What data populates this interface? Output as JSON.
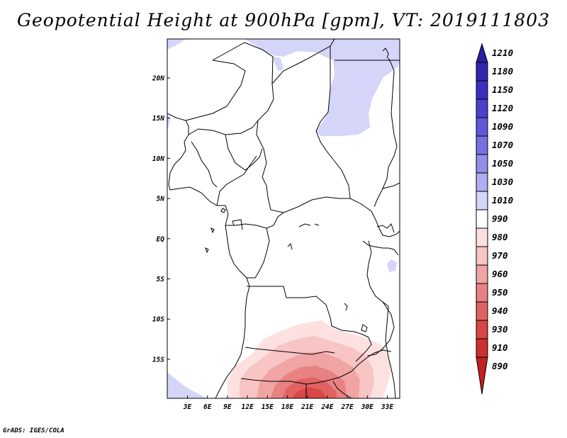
{
  "title": "Geopotential Height at 900hPa [gpm], VT: 2019111803",
  "credit": "GrADS: IGES/COLA",
  "map": {
    "variable": "Geopotential Height",
    "level": "900hPa",
    "units": "gpm",
    "valid_time": "2019111803",
    "lon_labels": [
      "3E",
      "6E",
      "9E",
      "12E",
      "15E",
      "18E",
      "21E",
      "24E",
      "27E",
      "30E",
      "33E"
    ],
    "lat_labels": [
      "20N",
      "15N",
      "10N",
      "5N",
      "EQ",
      "5S",
      "10S",
      "15S"
    ]
  },
  "colorbar": {
    "levels": [
      "1210",
      "1180",
      "1150",
      "1120",
      "1090",
      "1070",
      "1050",
      "1030",
      "1010",
      "990",
      "980",
      "970",
      "960",
      "950",
      "940",
      "930",
      "910",
      "890"
    ],
    "colors": [
      "#2a1da0",
      "#3225b0",
      "#3a30c0",
      "#4a42cc",
      "#5e58d8",
      "#7670e0",
      "#928ee8",
      "#b0adf0",
      "#d5d5fa",
      "#ffffff",
      "#fde0e0",
      "#f8c4c4",
      "#f0a4a4",
      "#e88282",
      "#e06262",
      "#d84646",
      "#cc3030",
      "#c02020"
    ]
  },
  "colors": {
    "high": "#d5d5fa",
    "low_1": "#fde0e0",
    "low_2": "#f8c4c4",
    "low_3": "#f0a4a4",
    "low_4": "#e88282",
    "low_5": "#e06262",
    "low_6": "#d84646",
    "border": "#000000"
  }
}
